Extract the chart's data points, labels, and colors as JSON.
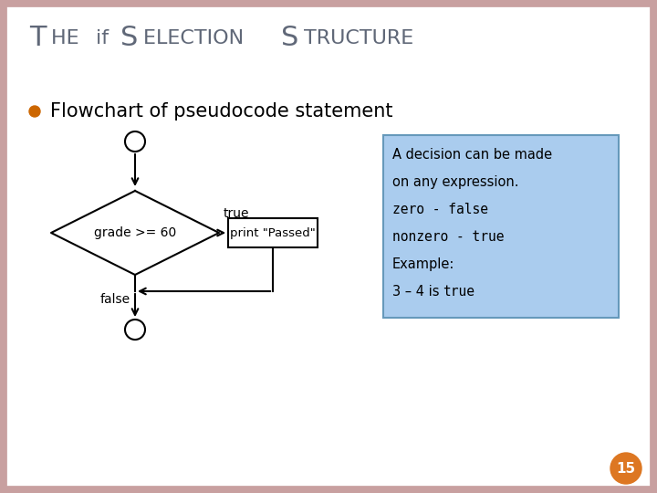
{
  "title_color": "#606878",
  "bullet_text": "Flowchart of pseudocode statement",
  "bullet_color": "#CC6600",
  "background_color": "#FFFFFF",
  "border_color": "#C8A0A0",
  "diamond_label": "grade >= 60",
  "true_label": "true",
  "false_label": "false",
  "box_label": "print \"Passed\"",
  "info_box_bg": "#AACCEE",
  "info_box_border": "#6699BB",
  "page_number": "15",
  "page_circle_color": "#DD7722",
  "title_parts": [
    {
      "text": "T",
      "size": 22
    },
    {
      "text": "HE ",
      "size": 16
    },
    {
      "text": "if ",
      "size": 16
    },
    {
      "text": "S",
      "size": 22
    },
    {
      "text": "ELECTION ",
      "size": 16
    },
    {
      "text": "S",
      "size": 22
    },
    {
      "text": "TRUCTURE",
      "size": 16
    }
  ]
}
